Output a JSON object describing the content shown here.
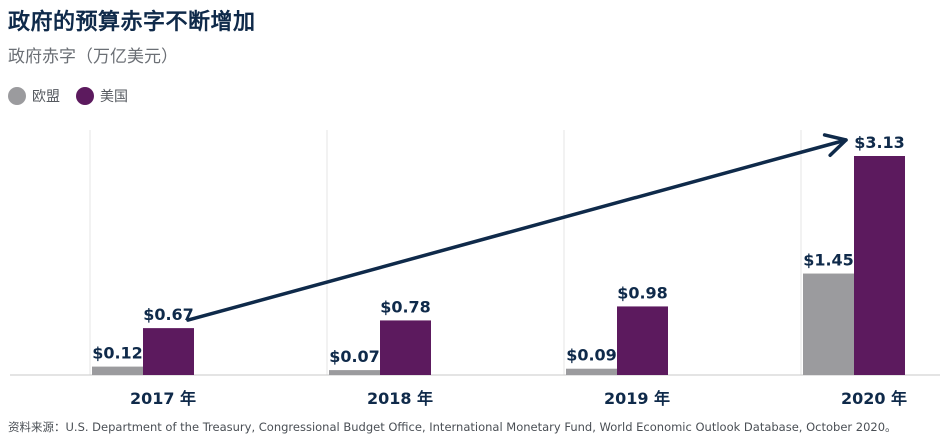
{
  "title": "政府的预算赤字不断增加",
  "subtitle": "政府赤字（万亿美元）",
  "legend": [
    {
      "label": "欧盟",
      "color": "#9b9b9e"
    },
    {
      "label": "美国",
      "color": "#5c1a5e"
    }
  ],
  "source": "资料来源：U.S. Department of the Treasury, Congressional Budget Office, International Monetary Fund, World Economic Outlook Database, October 2020。",
  "chart_data": {
    "type": "bar",
    "categories": [
      "2017 年",
      "2018 年",
      "2019 年",
      "2020 年"
    ],
    "series": [
      {
        "name": "欧盟",
        "values": [
          0.12,
          0.07,
          0.09,
          1.45
        ],
        "labels": [
          "$0.12",
          "$0.07",
          "$0.09",
          "$1.45"
        ],
        "color": "#9b9b9e"
      },
      {
        "name": "美国",
        "values": [
          0.67,
          0.78,
          0.98,
          3.13
        ],
        "labels": [
          "$0.67",
          "$0.78",
          "$0.98",
          "$3.13"
        ],
        "color": "#5c1a5e"
      }
    ],
    "ylim": [
      0,
      3.13
    ],
    "xlabel": "",
    "ylabel": "",
    "grid": "vertical separators",
    "legend_position": "top-left",
    "annotation": "trend arrow from 2017 US bar to 2020 US bar",
    "arrow_color": "#0f2a4a"
  }
}
